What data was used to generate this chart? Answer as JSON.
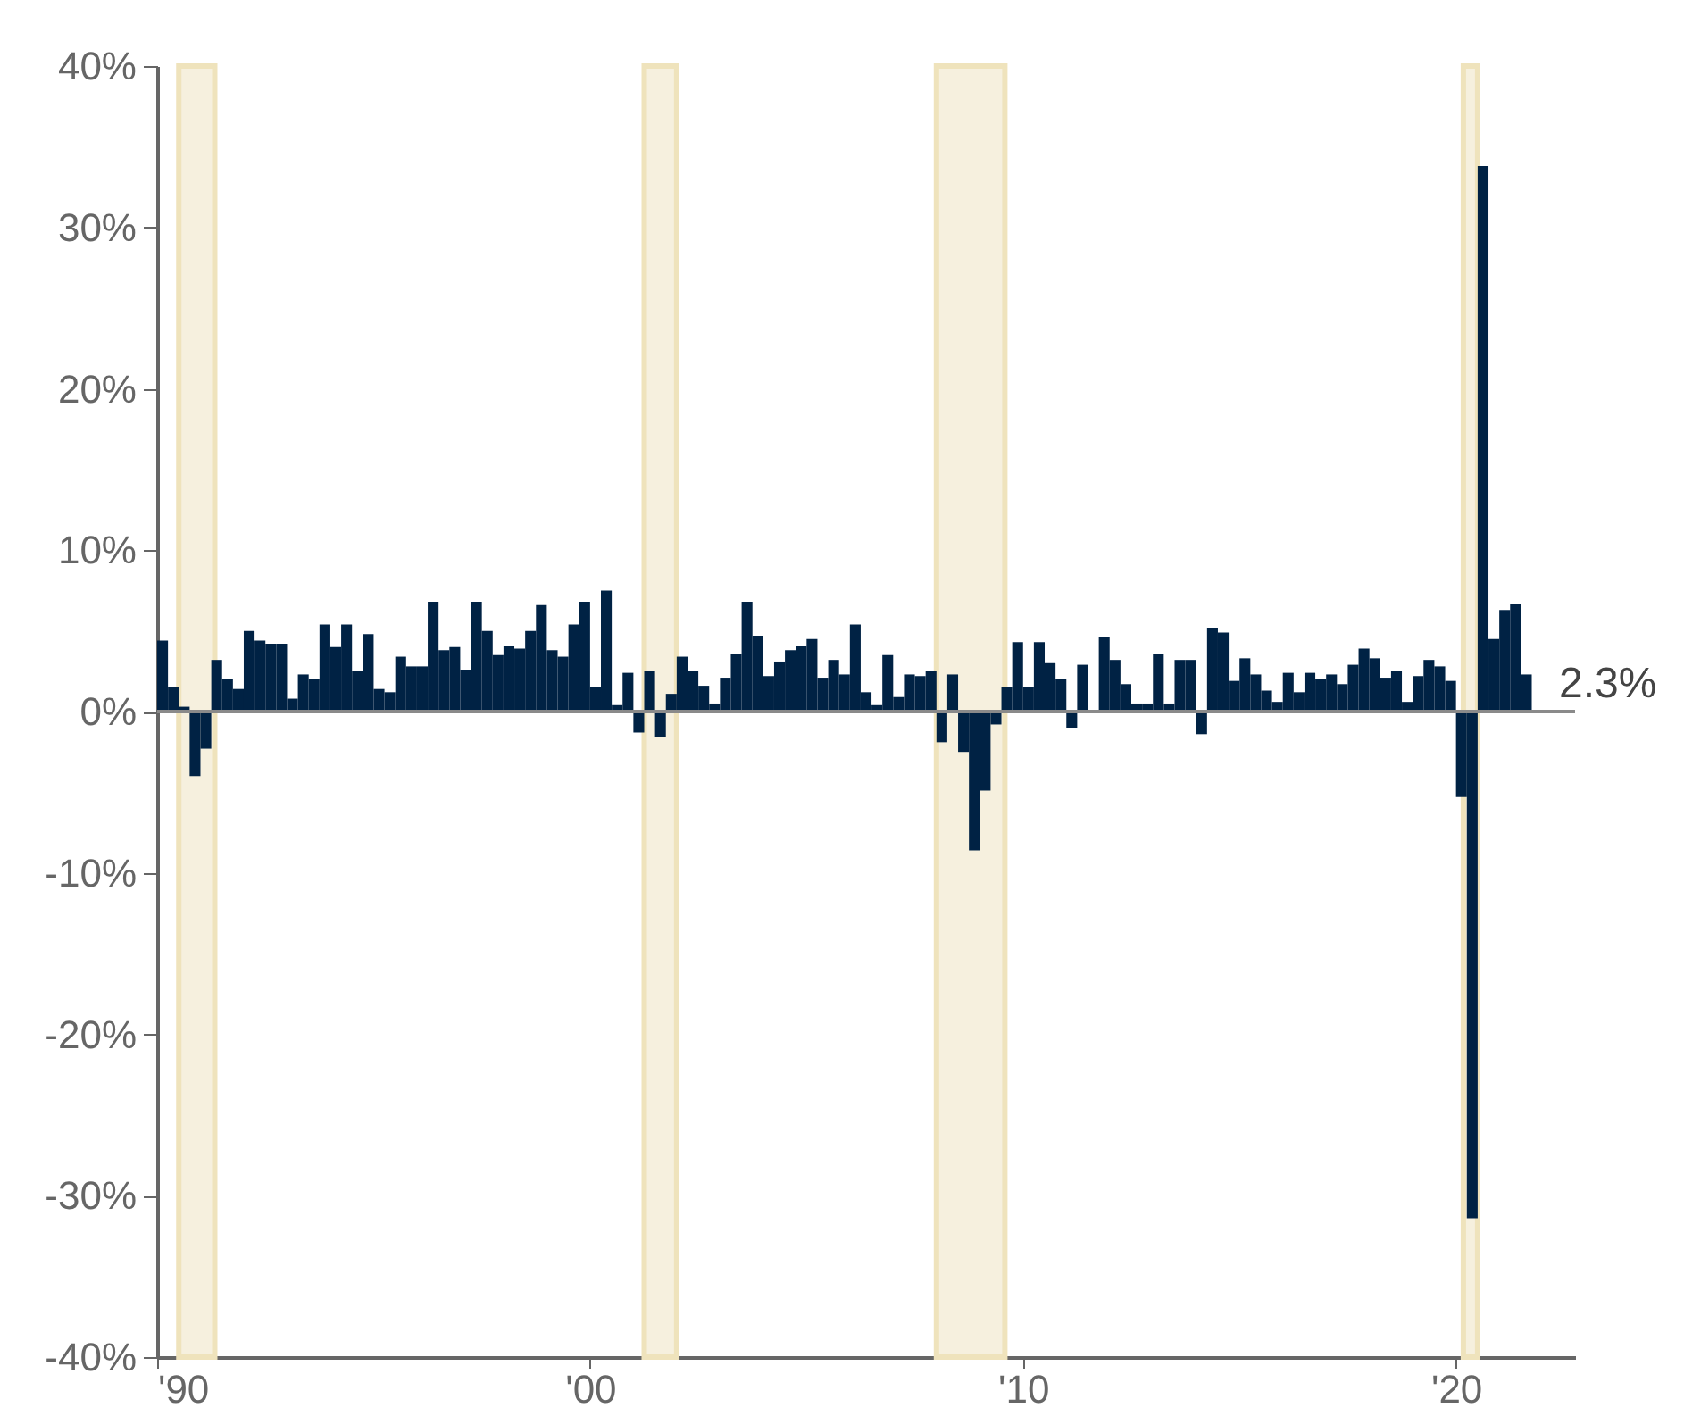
{
  "chart_data": {
    "type": "bar",
    "x": [
      1990,
      1990.25,
      1990.5,
      1990.75,
      1991,
      1991.25,
      1991.5,
      1991.75,
      1992,
      1992.25,
      1992.5,
      1992.75,
      1993,
      1993.25,
      1993.5,
      1993.75,
      1994,
      1994.25,
      1994.5,
      1994.75,
      1995,
      1995.25,
      1995.5,
      1995.75,
      1996,
      1996.25,
      1996.5,
      1996.75,
      1997,
      1997.25,
      1997.5,
      1997.75,
      1998,
      1998.25,
      1998.5,
      1998.75,
      1999,
      1999.25,
      1999.5,
      1999.75,
      2000,
      2000.25,
      2000.5,
      2000.75,
      2001,
      2001.25,
      2001.5,
      2001.75,
      2002,
      2002.25,
      2002.5,
      2002.75,
      2003,
      2003.25,
      2003.5,
      2003.75,
      2004,
      2004.25,
      2004.5,
      2004.75,
      2005,
      2005.25,
      2005.5,
      2005.75,
      2006,
      2006.25,
      2006.5,
      2006.75,
      2007,
      2007.25,
      2007.5,
      2007.75,
      2008,
      2008.25,
      2008.5,
      2008.75,
      2009,
      2009.25,
      2009.5,
      2009.75,
      2010,
      2010.25,
      2010.5,
      2010.75,
      2011,
      2011.25,
      2011.5,
      2011.75,
      2012,
      2012.25,
      2012.5,
      2012.75,
      2013,
      2013.25,
      2013.5,
      2013.75,
      2014,
      2014.25,
      2014.5,
      2014.75,
      2015,
      2015.25,
      2015.5,
      2015.75,
      2016,
      2016.25,
      2016.5,
      2016.75,
      2017,
      2017.25,
      2017.5,
      2017.75,
      2018,
      2018.25,
      2018.5,
      2018.75,
      2019,
      2019.25,
      2019.5,
      2019.75,
      2020,
      2020.25,
      2020.5,
      2020.75,
      2021,
      2021.25,
      2021.5
    ],
    "values": [
      4.4,
      1.5,
      0.3,
      -4.0,
      -2.3,
      3.2,
      2.0,
      1.4,
      5.0,
      4.4,
      4.2,
      4.2,
      0.8,
      2.3,
      2.0,
      5.4,
      4.0,
      5.4,
      2.5,
      4.8,
      1.4,
      1.2,
      3.4,
      2.8,
      2.8,
      6.8,
      3.8,
      4.0,
      2.6,
      6.8,
      5.0,
      3.5,
      4.1,
      3.9,
      5.0,
      6.6,
      3.8,
      3.4,
      5.4,
      6.8,
      1.5,
      7.5,
      0.4,
      2.4,
      -1.3,
      2.5,
      -1.6,
      1.1,
      3.4,
      2.5,
      1.6,
      0.5,
      2.1,
      3.6,
      6.8,
      4.7,
      2.2,
      3.1,
      3.8,
      4.1,
      4.5,
      2.1,
      3.2,
      2.3,
      5.4,
      1.2,
      0.4,
      3.5,
      0.9,
      2.3,
      2.2,
      2.5,
      -1.9,
      2.3,
      -2.5,
      -8.6,
      -4.9,
      -0.8,
      1.5,
      4.3,
      1.5,
      4.3,
      3.0,
      2.0,
      -1.0,
      2.9,
      -0.1,
      4.6,
      3.2,
      1.7,
      0.5,
      0.5,
      3.6,
      0.5,
      3.2,
      3.2,
      -1.4,
      5.2,
      4.9,
      1.9,
      3.3,
      2.3,
      1.3,
      0.6,
      2.4,
      1.2,
      2.4,
      2.0,
      2.3,
      1.7,
      2.9,
      3.9,
      3.3,
      2.1,
      2.5,
      0.6,
      2.2,
      3.2,
      2.8,
      1.9,
      -5.3,
      -31.4,
      33.8,
      4.5,
      6.3,
      6.7,
      2.3
    ],
    "annotations": [
      "2.3%"
    ],
    "color": "#002244",
    "xlim": [
      1990,
      2022.75
    ],
    "xticks": [
      {
        "value": 1990,
        "label": "'90"
      },
      {
        "value": 2000,
        "label": "'00"
      },
      {
        "value": 2010,
        "label": "'10"
      },
      {
        "value": 2020,
        "label": "'20"
      }
    ],
    "ylim": [
      -40,
      40
    ],
    "yticks": [
      {
        "value": -40,
        "label": "-40%"
      },
      {
        "value": -30,
        "label": "-30%"
      },
      {
        "value": -20,
        "label": "-20%"
      },
      {
        "value": -10,
        "label": "-10%"
      },
      {
        "value": 0,
        "label": "0%"
      },
      {
        "value": 10,
        "label": "10%"
      },
      {
        "value": 20,
        "label": "20%"
      },
      {
        "value": 30,
        "label": "30%"
      },
      {
        "value": 40,
        "label": "40%"
      }
    ],
    "bands": [
      {
        "axis": "x",
        "from": 1990.5,
        "to": 1991.33,
        "color": "#f6f0de"
      },
      {
        "axis": "x",
        "from": 2001.25,
        "to": 2002.0,
        "color": "#f6f0de"
      },
      {
        "axis": "x",
        "from": 2008.0,
        "to": 2009.58,
        "color": "#f6f0de"
      },
      {
        "axis": "x",
        "from": 2020.17,
        "to": 2020.5,
        "color": "#f6f0de"
      }
    ],
    "ref_lines": [
      {
        "axis": "y",
        "value": 0,
        "color": "#8a8a8a"
      }
    ],
    "grid": false
  }
}
